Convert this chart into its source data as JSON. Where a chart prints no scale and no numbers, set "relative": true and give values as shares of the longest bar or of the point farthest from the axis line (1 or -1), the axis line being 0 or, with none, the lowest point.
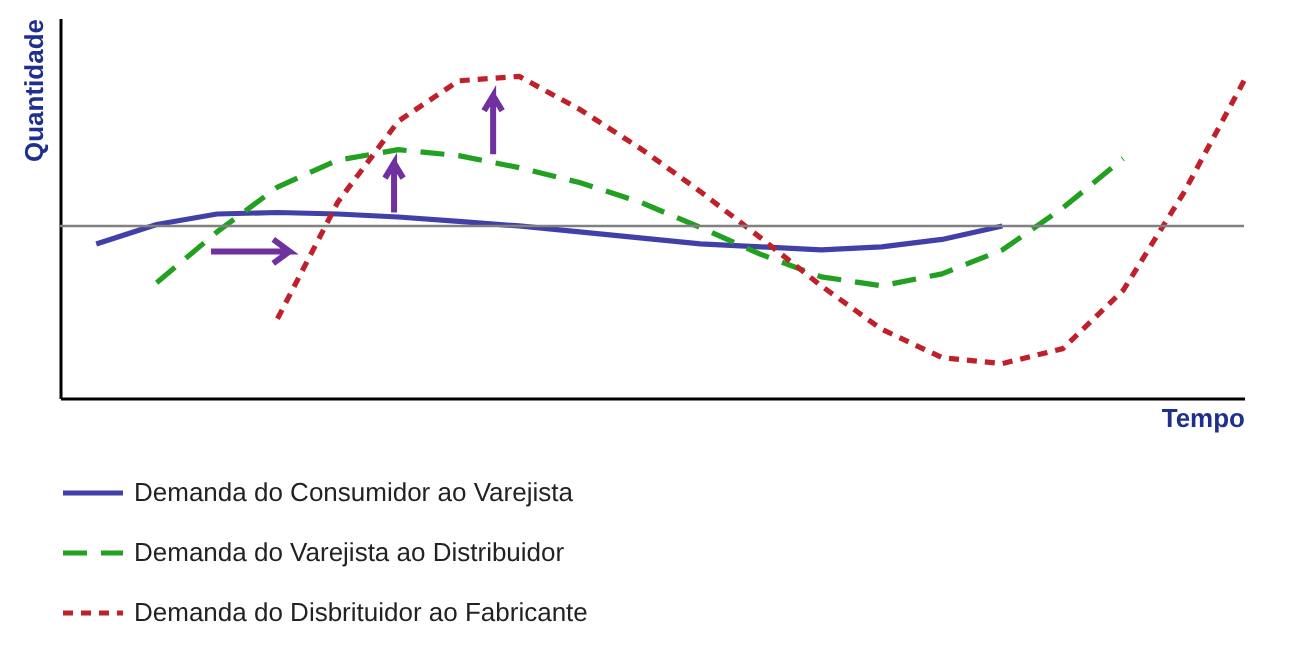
{
  "chart_data": {
    "type": "line",
    "relative": true,
    "xlabel": "Tempo",
    "ylabel": "Quantidade",
    "tick_labels": false,
    "legend": "bottom",
    "categories": [
      null,
      null,
      null,
      null,
      null,
      null,
      null,
      null,
      null,
      null,
      null,
      null,
      null,
      null,
      null,
      null,
      null,
      null,
      null,
      null,
      null
    ],
    "series": [
      {
        "name": "Demanda do Consumidor ao Varejista",
        "color": "#4040a8",
        "line_style": "solid",
        "values": [
          null,
          -0.12,
          0.01,
          0.08,
          0.09,
          0.08,
          0.06,
          0.03,
          0,
          -0.04,
          -0.08,
          -0.12,
          -0.14,
          -0.16,
          -0.14,
          -0.09,
          0,
          null,
          null,
          null,
          null
        ]
      },
      {
        "name": "Demanda do Varejista ao Distribuidor",
        "color": "#22a022",
        "line_style": "dashed",
        "values": [
          null,
          null,
          -0.38,
          -0.04,
          0.26,
          0.44,
          0.51,
          0.47,
          0.39,
          0.29,
          0.16,
          -0.01,
          -0.19,
          -0.34,
          -0.4,
          -0.32,
          -0.16,
          0.12,
          0.45,
          null,
          null
        ]
      },
      {
        "name": "Demanda do Disbrituidor ao Fabricante",
        "color": "#c0202a",
        "line_style": "dotted",
        "values": [
          null,
          null,
          null,
          null,
          -0.62,
          0.16,
          0.7,
          0.97,
          1,
          0.78,
          0.52,
          0.23,
          -0.08,
          -0.4,
          -0.69,
          -0.88,
          -0.92,
          -0.82,
          -0.43,
          0.22,
          0.97
        ]
      }
    ],
    "ref_lines": [
      {
        "axis": "y",
        "value": 0,
        "color": "#808080"
      }
    ]
  }
}
